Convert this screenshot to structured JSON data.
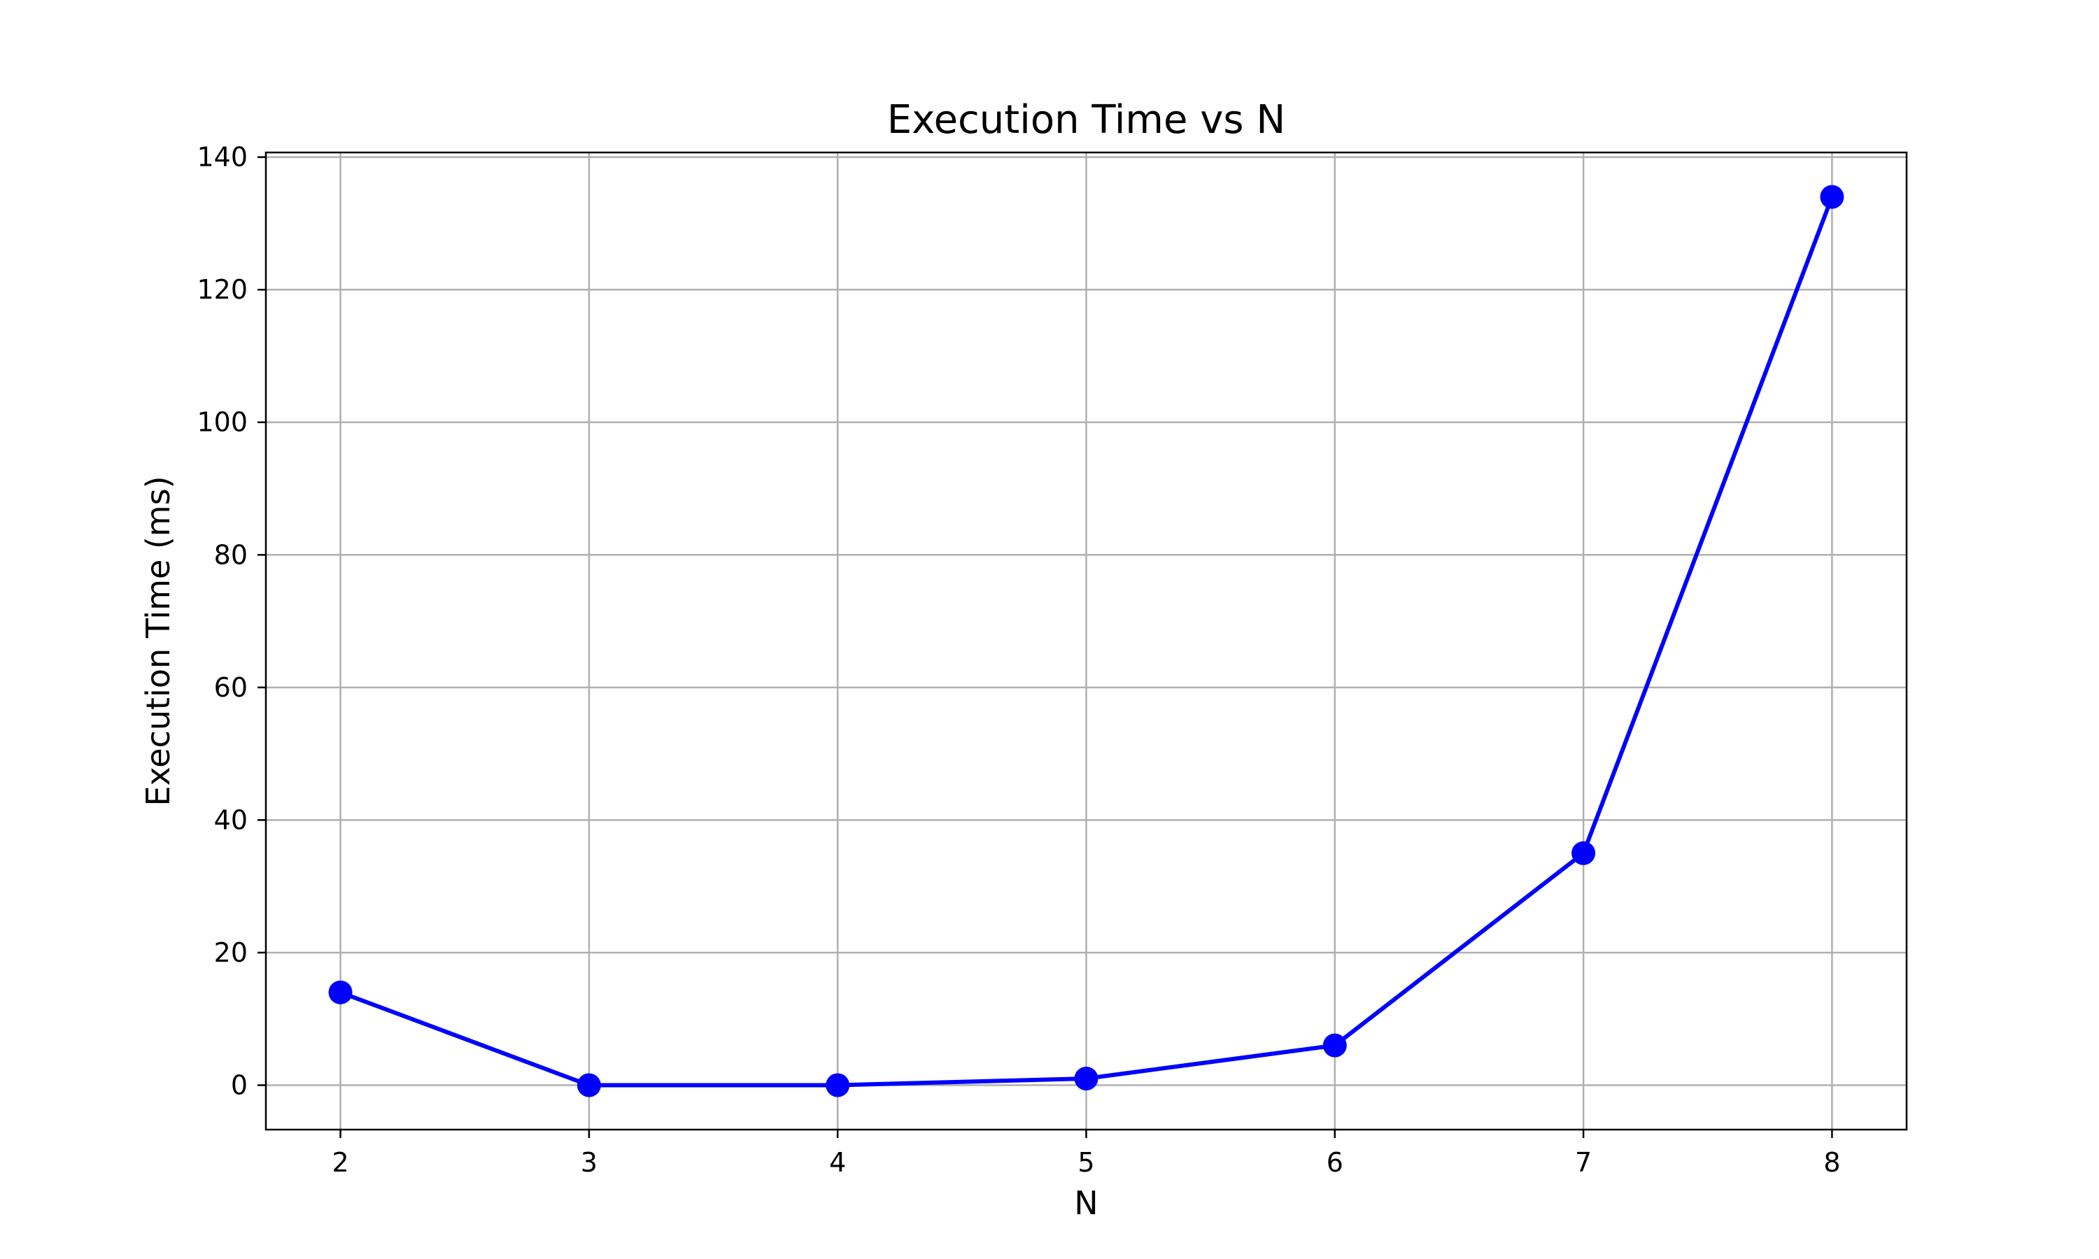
{
  "chart_data": {
    "type": "line",
    "title": "Execution Time vs N",
    "xlabel": "N",
    "ylabel": "Execution Time (ms)",
    "x": [
      2,
      3,
      4,
      5,
      6,
      7,
      8
    ],
    "series": [
      {
        "values": [
          14,
          0,
          0,
          1,
          6,
          35,
          134
        ],
        "color": "#0000ff",
        "marker": "circle"
      }
    ],
    "xlim": [
      1.7,
      8.3
    ],
    "ylim": [
      -6.7,
      140.7
    ],
    "x_ticks": [
      2,
      3,
      4,
      5,
      6,
      7,
      8
    ],
    "x_tick_labels": [
      "2",
      "3",
      "4",
      "5",
      "6",
      "7",
      "8"
    ],
    "y_ticks": [
      0,
      20,
      40,
      60,
      80,
      100,
      120,
      140
    ],
    "y_tick_labels": [
      "0",
      "20",
      "40",
      "60",
      "80",
      "100",
      "120",
      "140"
    ],
    "grid": true,
    "grid_color": "#b0b0b0",
    "axis_color": "#000000",
    "legend": "none"
  }
}
